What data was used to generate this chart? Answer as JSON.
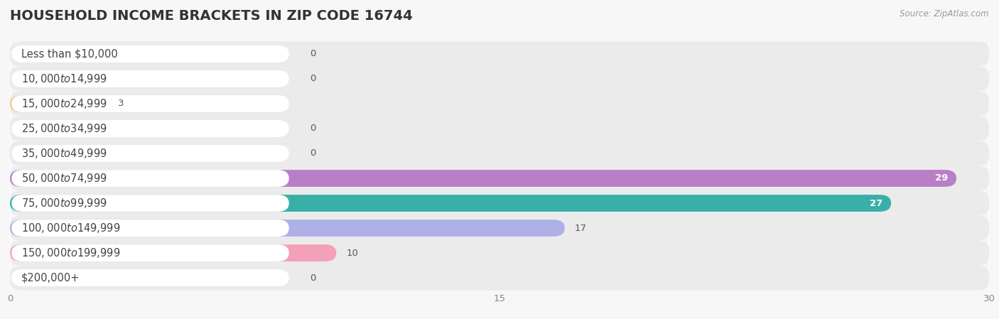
{
  "title": "HOUSEHOLD INCOME BRACKETS IN ZIP CODE 16744",
  "source": "Source: ZipAtlas.com",
  "categories": [
    "Less than $10,000",
    "$10,000 to $14,999",
    "$15,000 to $24,999",
    "$25,000 to $34,999",
    "$35,000 to $49,999",
    "$50,000 to $74,999",
    "$75,000 to $99,999",
    "$100,000 to $149,999",
    "$150,000 to $199,999",
    "$200,000+"
  ],
  "values": [
    0,
    0,
    3,
    0,
    0,
    29,
    27,
    17,
    10,
    0
  ],
  "bar_colors": [
    "#b0b0e0",
    "#f4a8c0",
    "#f5c880",
    "#f0a8a8",
    "#a8c8f0",
    "#b87ec8",
    "#38b0a8",
    "#b0b0e8",
    "#f4a0b8",
    "#f5d0a0"
  ],
  "xlim": [
    0,
    30
  ],
  "xticks": [
    0,
    15,
    30
  ],
  "background_color": "#f7f7f7",
  "row_bg_color": "#eeeeee",
  "bar_bg_color": "#e4e4ee",
  "title_fontsize": 14,
  "label_fontsize": 10.5,
  "value_fontsize": 9.5,
  "value_label_threshold": 25
}
